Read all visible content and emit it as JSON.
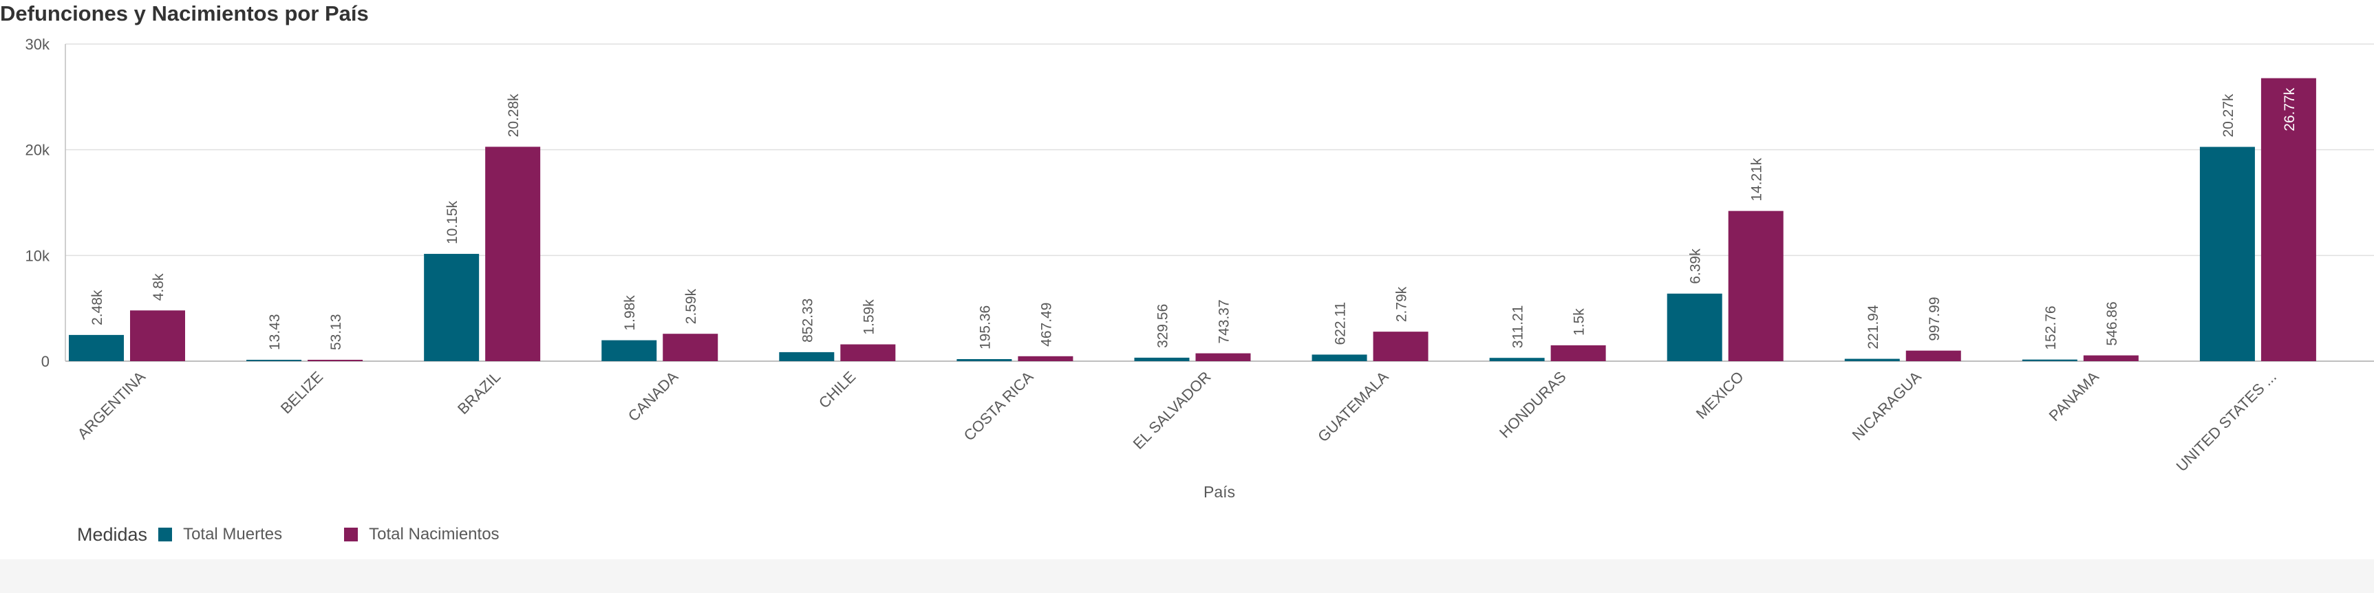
{
  "colors": {
    "series_deaths": "#00627a",
    "series_births": "#861d5a",
    "axis": "#bfbfbf",
    "grid": "#e0e0e0",
    "text": "#595959"
  },
  "chart_data": {
    "type": "bar",
    "title": "Defunciones y Nacimientos por País",
    "xlabel": "País",
    "ylabel": "",
    "ylim": [
      0,
      30000
    ],
    "yticks": [
      0,
      10000,
      20000,
      30000
    ],
    "ytick_labels": [
      "0",
      "10k",
      "20k",
      "30k"
    ],
    "grid": true,
    "legend_position": "bottom-left",
    "legend_title": "Medidas",
    "categories": [
      "ARGENTINA",
      "BELIZE",
      "BRAZIL",
      "CANADA",
      "CHILE",
      "COSTA RICA",
      "EL SALVADOR",
      "GUATEMALA",
      "HONDURAS",
      "MEXICO",
      "NICARAGUA",
      "PANAMA",
      "UNITED STATES ..."
    ],
    "series": [
      {
        "name": "Total Muertes",
        "values": [
          2480,
          13.43,
          10150,
          1980,
          852.33,
          195.36,
          329.56,
          622.11,
          311.21,
          6390,
          221.94,
          152.76,
          20270
        ],
        "labels": [
          "2.48k",
          "13.43",
          "10.15k",
          "1.98k",
          "852.33",
          "195.36",
          "329.56",
          "622.11",
          "311.21",
          "6.39k",
          "221.94",
          "152.76",
          "20.27k"
        ]
      },
      {
        "name": "Total Nacimientos",
        "values": [
          4800,
          53.13,
          20280,
          2590,
          1590,
          467.49,
          743.37,
          2790,
          1500,
          14210,
          997.99,
          546.86,
          26770
        ],
        "labels": [
          "4.8k",
          "53.13",
          "20.28k",
          "2.59k",
          "1.59k",
          "467.49",
          "743.37",
          "2.79k",
          "1.5k",
          "14.21k",
          "997.99",
          "546.86",
          "26.77k"
        ]
      }
    ]
  }
}
